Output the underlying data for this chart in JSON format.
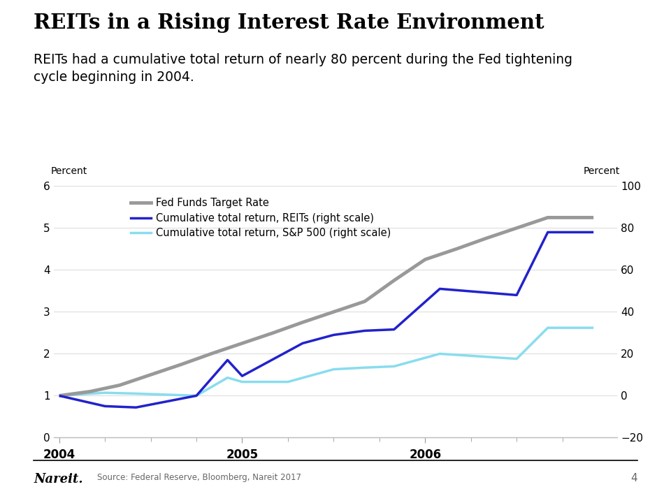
{
  "title": "REITs in a Rising Interest Rate Environment",
  "subtitle": "REITs had a cumulative total return of nearly 80 percent during the Fed tightening\ncycle beginning in 2004.",
  "ylabel_left": "Percent",
  "ylabel_right": "Percent",
  "ylim_left": [
    0,
    6
  ],
  "ylim_right": [
    -20,
    100
  ],
  "yticks_left": [
    0,
    1,
    2,
    3,
    4,
    5,
    6
  ],
  "yticks_right": [
    -20,
    0,
    20,
    40,
    60,
    80,
    100
  ],
  "source": "Source: Federal Reserve, Bloomberg, Nareit 2017",
  "page_number": "4",
  "background_color": "#ffffff",
  "fed_funds": {
    "x": [
      2004.0,
      2004.17,
      2004.33,
      2004.5,
      2004.67,
      2004.83,
      2005.0,
      2005.17,
      2005.33,
      2005.5,
      2005.67,
      2005.83,
      2006.0,
      2006.17,
      2006.33,
      2006.5,
      2006.67,
      2006.83,
      2006.92
    ],
    "y": [
      1.0,
      1.1,
      1.25,
      1.5,
      1.75,
      2.0,
      2.25,
      2.5,
      2.75,
      3.0,
      3.25,
      3.75,
      4.25,
      4.5,
      4.75,
      5.0,
      5.25,
      5.25,
      5.25
    ],
    "color": "#999999",
    "linewidth": 3.5,
    "label": "Fed Funds Target Rate"
  },
  "reits": {
    "x": [
      2004.0,
      2004.25,
      2004.42,
      2004.75,
      2004.92,
      2005.0,
      2005.33,
      2005.5,
      2005.67,
      2005.83,
      2006.08,
      2006.5,
      2006.67,
      2006.92
    ],
    "y": [
      1.0,
      0.75,
      0.72,
      1.0,
      1.85,
      1.47,
      2.25,
      2.45,
      2.55,
      2.58,
      3.55,
      3.4,
      4.9,
      4.9
    ],
    "color": "#2222cc",
    "linewidth": 2.5,
    "label": "Cumulative total return, REITs (right scale)"
  },
  "sp500": {
    "x": [
      2004.0,
      2004.25,
      2004.42,
      2004.75,
      2004.92,
      2005.0,
      2005.25,
      2005.5,
      2005.67,
      2005.83,
      2006.08,
      2006.5,
      2006.67,
      2006.92
    ],
    "y": [
      1.0,
      1.07,
      1.05,
      1.0,
      1.43,
      1.33,
      1.33,
      1.63,
      1.67,
      1.7,
      2.0,
      1.88,
      2.62,
      2.62
    ],
    "color": "#88ddee",
    "linewidth": 2.5,
    "label": "Cumulative total return, S&P 500 (right scale)"
  },
  "xtick_positions": [
    2004.0,
    2004.25,
    2004.5,
    2004.75,
    2005.0,
    2005.25,
    2005.5,
    2005.75,
    2006.0,
    2006.25,
    2006.5,
    2006.75
  ],
  "xlim": [
    2003.97,
    2007.05
  ],
  "nareit_color": "#000000",
  "source_color": "#666666",
  "page_color": "#666666"
}
